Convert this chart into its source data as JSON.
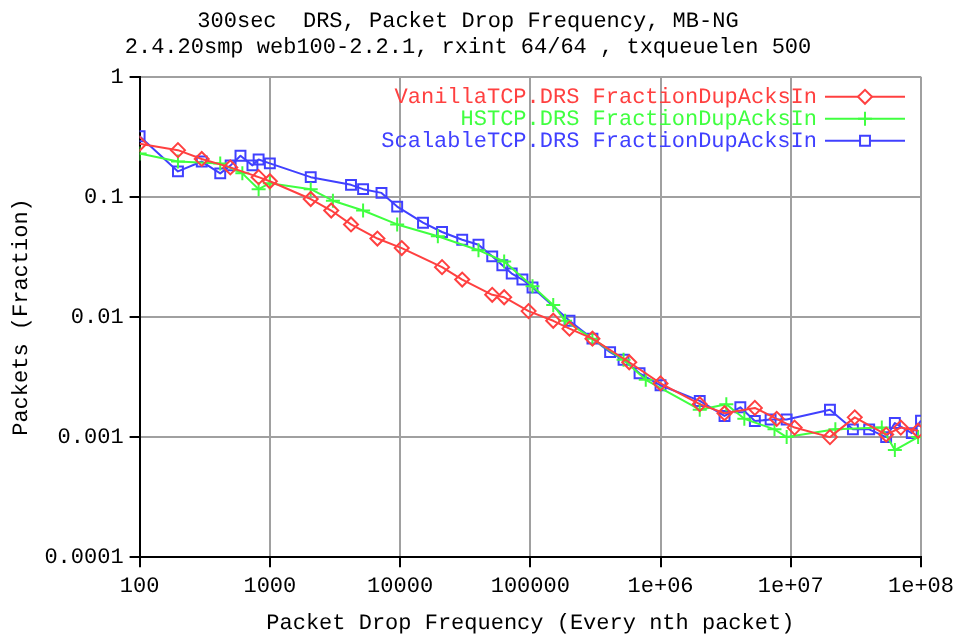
{
  "chart_data": {
    "type": "line",
    "title": "300sec  DRS, Packet Drop Frequency, MB-NG",
    "subtitle": "2.4.20smp web100-2.2.1, rxint 64/64 , txqueuelen 500",
    "xlabel": "Packet Drop Frequency (Every nth packet)",
    "ylabel": "Packets (Fraction)",
    "log": "xy",
    "grid": true,
    "legend": "top right",
    "xlim": [
      100,
      100000000
    ],
    "ylim": [
      0.0001,
      1
    ],
    "xticks": [
      100,
      1000,
      10000,
      100000,
      {
        "value": 1000000,
        "label": "1e+06"
      },
      {
        "value": 10000000,
        "label": "1e+07"
      },
      {
        "value": 100000000,
        "label": "1e+08"
      }
    ],
    "yticks": [
      0.0001,
      0.001,
      0.01,
      0.1,
      1
    ],
    "series": [
      {
        "name": "VanillaTCP.DRS FractionDupAcksIn",
        "color": "#ff4040",
        "marker": "diamond",
        "x": [
          100,
          197,
          300,
          497,
          820,
          1000,
          2060,
          2960,
          4200,
          6700,
          10300,
          21000,
          30000,
          51000,
          63000,
          97000,
          150000,
          200000,
          300000,
          575000,
          1000000,
          2000000,
          3100000,
          5300000,
          7800000,
          10700000,
          20000000,
          31000000,
          54000000,
          70000000,
          95000000
        ],
        "values": [
          0.277,
          0.245,
          0.207,
          0.176,
          0.146,
          0.135,
          0.096,
          0.077,
          0.059,
          0.045,
          0.0375,
          0.026,
          0.0205,
          0.0153,
          0.0146,
          0.0112,
          0.0093,
          0.008,
          0.0066,
          0.0042,
          0.0028,
          0.00188,
          0.00158,
          0.00175,
          0.00142,
          0.0012,
          0.001,
          0.00146,
          0.00105,
          0.0012,
          0.00113
        ]
      },
      {
        "name": "HSTCP.DRS FractionDupAcksIn",
        "color": "#40ff40",
        "marker": "cross",
        "x": [
          100,
          197,
          416,
          615,
          820,
          1000,
          2060,
          3050,
          5200,
          9500,
          19500,
          40000,
          63000,
          104000,
          150000,
          185000,
          300000,
          520000,
          770000,
          2000000,
          3200000,
          4400000,
          7500000,
          9300000,
          22000000,
          50000000,
          63000000,
          95000000
        ],
        "values": [
          0.23,
          0.197,
          0.19,
          0.157,
          0.116,
          0.13,
          0.116,
          0.093,
          0.077,
          0.059,
          0.047,
          0.036,
          0.029,
          0.018,
          0.0126,
          0.0093,
          0.0066,
          0.0044,
          0.003,
          0.00169,
          0.00188,
          0.00142,
          0.00116,
          0.001,
          0.00116,
          0.0012,
          0.00078,
          0.001
        ]
      },
      {
        "name": "ScalableTCP.DRS FractionDupAcksIn",
        "color": "#4040ff",
        "marker": "square",
        "x": [
          100,
          197,
          300,
          416,
          500,
          595,
          735,
          820,
          1000,
          2060,
          4200,
          5200,
          7200,
          9500,
          15000,
          21000,
          30000,
          40000,
          51000,
          61000,
          72000,
          87000,
          104000,
          200000,
          300000,
          410000,
          520000,
          690000,
          1000000,
          2000000,
          3100000,
          4100000,
          5300000,
          7000000,
          9300000,
          20000000,
          30000000,
          40000000,
          54000000,
          63000000,
          85000000,
          100000000
        ],
        "values": [
          0.32,
          0.163,
          0.197,
          0.157,
          0.183,
          0.22,
          0.183,
          0.205,
          0.19,
          0.146,
          0.126,
          0.116,
          0.108,
          0.083,
          0.061,
          0.051,
          0.044,
          0.04,
          0.032,
          0.027,
          0.023,
          0.0205,
          0.0176,
          0.0093,
          0.0066,
          0.0051,
          0.0044,
          0.0034,
          0.0027,
          0.002,
          0.0015,
          0.00177,
          0.00136,
          0.0014,
          0.0014,
          0.00169,
          0.00116,
          0.00116,
          0.001,
          0.00131,
          0.00108,
          0.00137
        ]
      }
    ]
  }
}
